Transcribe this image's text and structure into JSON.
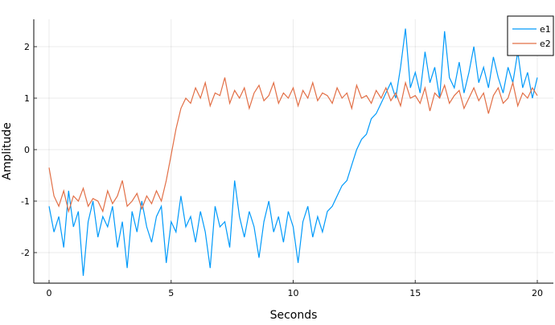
{
  "chart_data": {
    "type": "line",
    "title": "",
    "xlabel": "Seconds",
    "ylabel": "Amplitude",
    "xlim": [
      -0.6,
      20.6
    ],
    "ylim": [
      -2.6,
      2.55
    ],
    "xticks": [
      0,
      5,
      10,
      15,
      20
    ],
    "yticks": [
      -2,
      -1,
      0,
      1,
      2
    ],
    "xtick_labels": [
      "0",
      "5",
      "10",
      "15",
      "20"
    ],
    "ytick_labels": [
      "-2",
      "-1",
      "0",
      "1",
      "2"
    ],
    "grid": true,
    "legend_placement": "top-right",
    "x_start": 0,
    "x_step": 0.2,
    "series": [
      {
        "name": "e1",
        "color": "#009AFA",
        "values": [
          -1.1,
          -1.6,
          -1.3,
          -1.9,
          -0.8,
          -1.5,
          -1.2,
          -2.45,
          -1.4,
          -1.0,
          -1.7,
          -1.3,
          -1.5,
          -1.1,
          -1.9,
          -1.4,
          -2.3,
          -1.2,
          -1.6,
          -1.0,
          -1.5,
          -1.8,
          -1.3,
          -1.1,
          -2.2,
          -1.4,
          -1.6,
          -0.9,
          -1.5,
          -1.3,
          -1.8,
          -1.2,
          -1.6,
          -2.3,
          -1.1,
          -1.5,
          -1.4,
          -1.9,
          -0.6,
          -1.3,
          -1.7,
          -1.2,
          -1.5,
          -2.1,
          -1.4,
          -1.0,
          -1.6,
          -1.3,
          -1.8,
          -1.2,
          -1.5,
          -2.2,
          -1.4,
          -1.1,
          -1.7,
          -1.3,
          -1.6,
          -1.2,
          -1.1,
          -0.9,
          -0.7,
          -0.6,
          -0.3,
          0.0,
          0.2,
          0.3,
          0.6,
          0.7,
          0.9,
          1.1,
          1.3,
          1.0,
          1.6,
          2.35,
          1.2,
          1.5,
          1.1,
          1.9,
          1.3,
          1.6,
          1.0,
          2.3,
          1.4,
          1.2,
          1.7,
          1.1,
          1.5,
          2.0,
          1.3,
          1.6,
          1.2,
          1.8,
          1.4,
          1.1,
          1.6,
          1.3,
          1.9,
          1.2,
          1.5,
          1.0,
          1.4
        ]
      },
      {
        "name": "e2",
        "color": "#E26F46",
        "values": [
          -0.35,
          -0.9,
          -1.1,
          -0.8,
          -1.2,
          -0.9,
          -1.0,
          -0.75,
          -1.1,
          -0.95,
          -1.0,
          -1.2,
          -0.8,
          -1.05,
          -0.9,
          -0.6,
          -1.1,
          -1.0,
          -0.85,
          -1.15,
          -0.9,
          -1.05,
          -0.8,
          -1.0,
          -0.6,
          -0.1,
          0.4,
          0.8,
          1.0,
          0.9,
          1.2,
          1.0,
          1.3,
          0.85,
          1.1,
          1.05,
          1.4,
          0.9,
          1.15,
          1.0,
          1.2,
          0.8,
          1.1,
          1.25,
          0.95,
          1.05,
          1.3,
          0.9,
          1.1,
          1.0,
          1.2,
          0.85,
          1.15,
          1.0,
          1.3,
          0.95,
          1.1,
          1.05,
          0.9,
          1.2,
          1.0,
          1.1,
          0.8,
          1.25,
          1.0,
          1.05,
          0.9,
          1.15,
          1.0,
          1.2,
          0.95,
          1.1,
          0.85,
          1.3,
          1.0,
          1.05,
          0.9,
          1.2,
          0.75,
          1.1,
          1.0,
          1.25,
          0.9,
          1.05,
          1.15,
          0.8,
          1.0,
          1.2,
          0.95,
          1.1,
          0.7,
          1.05,
          1.2,
          0.9,
          1.0,
          1.3,
          0.85,
          1.1,
          1.0,
          1.2,
          1.05
        ]
      }
    ]
  }
}
